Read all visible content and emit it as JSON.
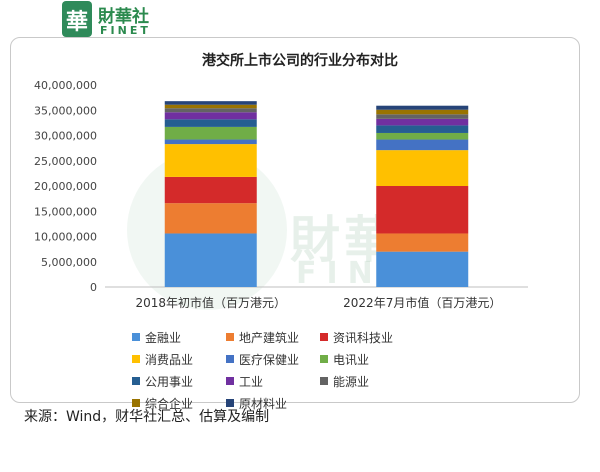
{
  "header": {
    "logo_char": "華",
    "logo_cn": "財華社",
    "logo_en": "FINET"
  },
  "watermark": {
    "cn": "財華社",
    "en": "FINET",
    "char": "華"
  },
  "colors": {
    "金融业": "#4a90d9",
    "地产建筑业": "#ed7d31",
    "资讯科技业": "#d42a2a",
    "消费品业": "#ffc000",
    "医疗保健业": "#4472c4",
    "电讯业": "#70ad47",
    "公用事业": "#255e91",
    "工业": "#7030a0",
    "能源业": "#636363",
    "综合企业": "#997300",
    "原材料业": "#264478"
  },
  "chart_data": {
    "type": "bar",
    "stacked": true,
    "title": "港交所上市公司的行业分布对比",
    "categories": [
      "2018年初市值（百万港元）",
      "2022年7月市值（百万港元）"
    ],
    "ylim": [
      0,
      40000000
    ],
    "yticks": [
      0,
      5000000,
      10000000,
      15000000,
      20000000,
      25000000,
      30000000,
      35000000,
      40000000
    ],
    "ytick_labels": [
      "0",
      "5,000,000",
      "10,000,000",
      "15,000,000",
      "20,000,000",
      "25,000,000",
      "30,000,000",
      "35,000,000",
      "40,000,000"
    ],
    "legend_position": "bottom",
    "grid": false,
    "series": [
      {
        "name": "金融业",
        "values": [
          10600000,
          7000000
        ]
      },
      {
        "name": "地产建筑业",
        "values": [
          6000000,
          3600000
        ]
      },
      {
        "name": "资讯科技业",
        "values": [
          5200000,
          9400000
        ]
      },
      {
        "name": "消费品业",
        "values": [
          6500000,
          7100000
        ]
      },
      {
        "name": "医疗保健业",
        "values": [
          900000,
          2100000
        ]
      },
      {
        "name": "电讯业",
        "values": [
          2500000,
          1300000
        ]
      },
      {
        "name": "公用事业",
        "values": [
          1500000,
          1500000
        ]
      },
      {
        "name": "工业",
        "values": [
          1400000,
          1300000
        ]
      },
      {
        "name": "能源业",
        "values": [
          800000,
          900000
        ]
      },
      {
        "name": "综合企业",
        "values": [
          700000,
          900000
        ]
      },
      {
        "name": "原材料业",
        "values": [
          700000,
          800000
        ]
      }
    ]
  },
  "source_note": "来源：Wind，财华社汇总、估算及编制"
}
